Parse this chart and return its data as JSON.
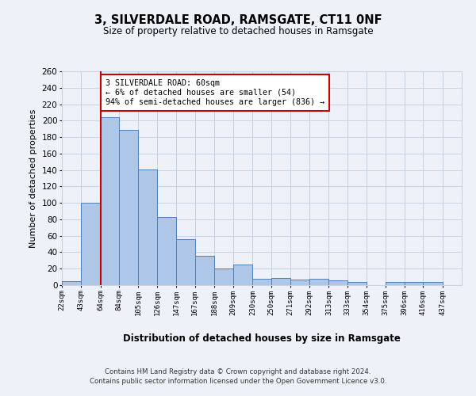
{
  "title": "3, SILVERDALE ROAD, RAMSGATE, CT11 0NF",
  "subtitle": "Size of property relative to detached houses in Ramsgate",
  "xlabel": "Distribution of detached houses by size in Ramsgate",
  "ylabel": "Number of detached properties",
  "bar_left_edges": [
    22,
    43,
    64,
    84,
    105,
    126,
    147,
    167,
    188,
    209,
    230,
    250,
    271,
    292,
    313,
    333,
    354,
    375,
    396,
    416
  ],
  "bar_widths": [
    21,
    21,
    20,
    21,
    21,
    21,
    20,
    21,
    21,
    21,
    20,
    21,
    21,
    21,
    20,
    21,
    21,
    21,
    20,
    21
  ],
  "bar_heights": [
    5,
    100,
    204,
    189,
    141,
    83,
    56,
    36,
    20,
    25,
    8,
    9,
    7,
    8,
    6,
    4,
    0,
    4,
    4,
    4
  ],
  "bar_color": "#aec6e8",
  "bar_edge_color": "#4f7fb5",
  "tick_labels": [
    "22sqm",
    "43sqm",
    "64sqm",
    "84sqm",
    "105sqm",
    "126sqm",
    "147sqm",
    "167sqm",
    "188sqm",
    "209sqm",
    "230sqm",
    "250sqm",
    "271sqm",
    "292sqm",
    "313sqm",
    "333sqm",
    "354sqm",
    "375sqm",
    "396sqm",
    "416sqm",
    "437sqm"
  ],
  "tick_positions": [
    22,
    43,
    64,
    84,
    105,
    126,
    147,
    167,
    188,
    209,
    230,
    250,
    271,
    292,
    313,
    333,
    354,
    375,
    396,
    416,
    437
  ],
  "xlim": [
    22,
    458
  ],
  "ylim": [
    0,
    260
  ],
  "yticks": [
    0,
    20,
    40,
    60,
    80,
    100,
    120,
    140,
    160,
    180,
    200,
    220,
    240,
    260
  ],
  "marker_x": 64,
  "marker_color": "#cc0000",
  "annotation_title": "3 SILVERDALE ROAD: 60sqm",
  "annotation_line1": "← 6% of detached houses are smaller (54)",
  "annotation_line2": "94% of semi-detached houses are larger (836) →",
  "annotation_box_color": "#ffffff",
  "annotation_box_edge_color": "#cc0000",
  "grid_color": "#c8d4e8",
  "background_color": "#eef2f8",
  "footer_line1": "Contains HM Land Registry data © Crown copyright and database right 2024.",
  "footer_line2": "Contains public sector information licensed under the Open Government Licence v3.0."
}
